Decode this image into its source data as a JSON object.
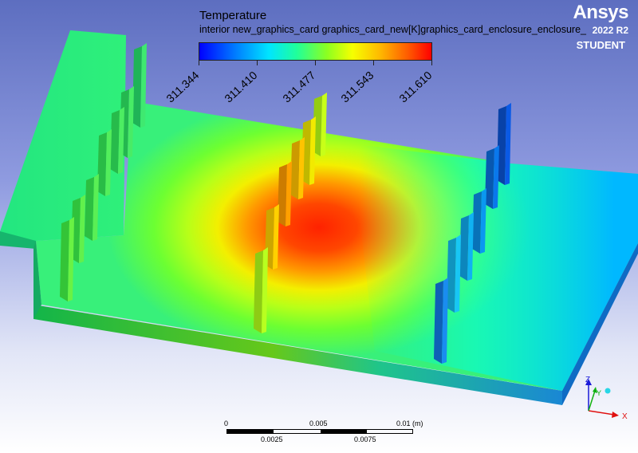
{
  "legend": {
    "title": "Temperature",
    "subtitle": "interior new_graphics_card graphics_card_new[K]graphics_card_enclosure_enclosure_",
    "ticks": [
      "311.344",
      "311.410",
      "311.477",
      "311.543",
      "311.610"
    ],
    "range": [
      311.344,
      311.61
    ],
    "colormap": [
      "#0000ff",
      "#00e5ff",
      "#8cff20",
      "#f6ff00",
      "#ff0000"
    ]
  },
  "brand": {
    "name": "Ansys",
    "version": "2022 R2",
    "edition": "STUDENT"
  },
  "scale": {
    "top_labels": [
      "0",
      "0.005",
      "0.01 (m)"
    ],
    "bottom_labels": [
      "0.0025",
      "0.0075"
    ]
  },
  "axes": {
    "x": "X",
    "y": "Y",
    "z": "Z"
  },
  "colors": {
    "background_top": "#5d6ec0",
    "background_bottom": "#ffffff",
    "hot": "#ff2a00",
    "cool": "#00c6ff"
  }
}
